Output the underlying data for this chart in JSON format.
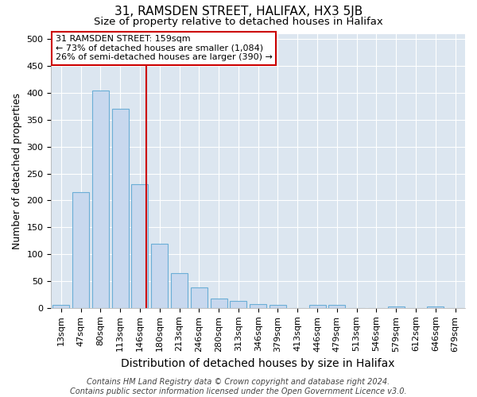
{
  "title": "31, RAMSDEN STREET, HALIFAX, HX3 5JB",
  "subtitle": "Size of property relative to detached houses in Halifax",
  "xlabel": "Distribution of detached houses by size in Halifax",
  "ylabel": "Number of detached properties",
  "bin_labels": [
    "13sqm",
    "47sqm",
    "80sqm",
    "113sqm",
    "146sqm",
    "180sqm",
    "213sqm",
    "246sqm",
    "280sqm",
    "313sqm",
    "346sqm",
    "379sqm",
    "413sqm",
    "446sqm",
    "479sqm",
    "513sqm",
    "546sqm",
    "579sqm",
    "612sqm",
    "646sqm",
    "679sqm"
  ],
  "bar_heights": [
    5,
    215,
    405,
    370,
    230,
    120,
    65,
    38,
    17,
    13,
    7,
    5,
    0,
    5,
    5,
    0,
    0,
    2,
    0,
    3,
    0
  ],
  "bar_color": "#c8d8ee",
  "bar_edge_color": "#6baed6",
  "plot_bg_color": "#dce6f0",
  "fig_bg_color": "#ffffff",
  "ylim": [
    0,
    510
  ],
  "vline_x_bin": 4,
  "vline_color": "#cc0000",
  "annotation_text": "31 RAMSDEN STREET: 159sqm\n← 73% of detached houses are smaller (1,084)\n26% of semi-detached houses are larger (390) →",
  "annotation_box_color": "#ffffff",
  "annotation_box_edge": "#cc0000",
  "footer_text": "Contains HM Land Registry data © Crown copyright and database right 2024.\nContains public sector information licensed under the Open Government Licence v3.0.",
  "grid_color": "#ffffff",
  "title_fontsize": 11,
  "subtitle_fontsize": 9.5,
  "xlabel_fontsize": 10,
  "ylabel_fontsize": 9,
  "tick_fontsize": 8,
  "footer_fontsize": 7,
  "ann_fontsize": 8
}
